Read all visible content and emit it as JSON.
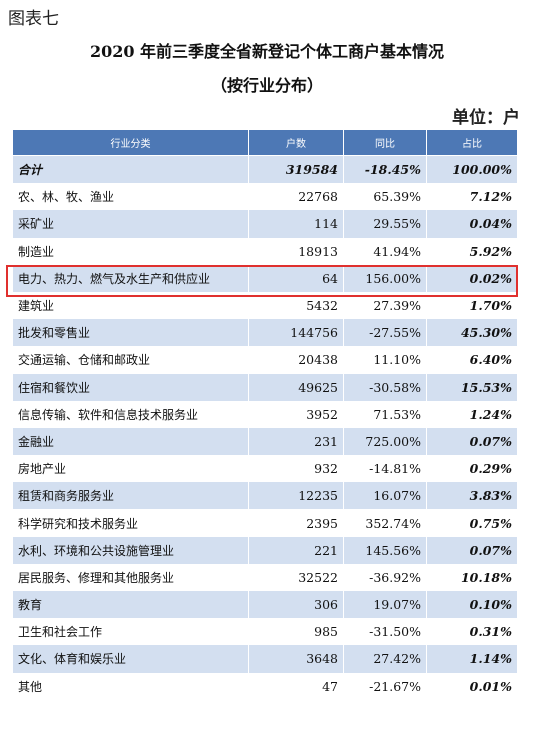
{
  "figure_label": "图表七",
  "title_line1": "2020 年前三季度全省新登记个体工商户基本情况",
  "title_line2": "（按行业分布）",
  "unit_label": "单位：户",
  "table": {
    "headers": [
      "行业分类",
      "户数",
      "同比",
      "占比"
    ],
    "rows": [
      {
        "name": "合计",
        "count": "319584",
        "yoy": "-18.45%",
        "share": "100.00%"
      },
      {
        "name": "农、林、牧、渔业",
        "count": "22768",
        "yoy": "65.39%",
        "share": "7.12%"
      },
      {
        "name": "采矿业",
        "count": "114",
        "yoy": "29.55%",
        "share": "0.04%"
      },
      {
        "name": "制造业",
        "count": "18913",
        "yoy": "41.94%",
        "share": "5.92%"
      },
      {
        "name": "电力、热力、燃气及水生产和供应业",
        "count": "64",
        "yoy": "156.00%",
        "share": "0.02%"
      },
      {
        "name": "建筑业",
        "count": "5432",
        "yoy": "27.39%",
        "share": "1.70%"
      },
      {
        "name": "批发和零售业",
        "count": "144756",
        "yoy": "-27.55%",
        "share": "45.30%"
      },
      {
        "name": "交通运输、仓储和邮政业",
        "count": "20438",
        "yoy": "11.10%",
        "share": "6.40%"
      },
      {
        "name": "住宿和餐饮业",
        "count": "49625",
        "yoy": "-30.58%",
        "share": "15.53%"
      },
      {
        "name": "信息传输、软件和信息技术服务业",
        "count": "3952",
        "yoy": "71.53%",
        "share": "1.24%"
      },
      {
        "name": "金融业",
        "count": "231",
        "yoy": "725.00%",
        "share": "0.07%"
      },
      {
        "name": "房地产业",
        "count": "932",
        "yoy": "-14.81%",
        "share": "0.29%"
      },
      {
        "name": "租赁和商务服务业",
        "count": "12235",
        "yoy": "16.07%",
        "share": "3.83%"
      },
      {
        "name": "科学研究和技术服务业",
        "count": "2395",
        "yoy": "352.74%",
        "share": "0.75%"
      },
      {
        "name": "水利、环境和公共设施管理业",
        "count": "221",
        "yoy": "145.56%",
        "share": "0.07%"
      },
      {
        "name": "居民服务、修理和其他服务业",
        "count": "32522",
        "yoy": "-36.92%",
        "share": "10.18%"
      },
      {
        "name": "教育",
        "count": "306",
        "yoy": "19.07%",
        "share": "0.10%"
      },
      {
        "name": "卫生和社会工作",
        "count": "985",
        "yoy": "-31.50%",
        "share": "0.31%"
      },
      {
        "name": "文化、体育和娱乐业",
        "count": "3648",
        "yoy": "27.42%",
        "share": "1.14%"
      },
      {
        "name": "其他",
        "count": "47",
        "yoy": "-21.67%",
        "share": "0.01%"
      }
    ]
  },
  "colors": {
    "header_bg": "#4d78b5",
    "band_bg": "#d3dff0",
    "highlight_border": "#e0302e"
  }
}
